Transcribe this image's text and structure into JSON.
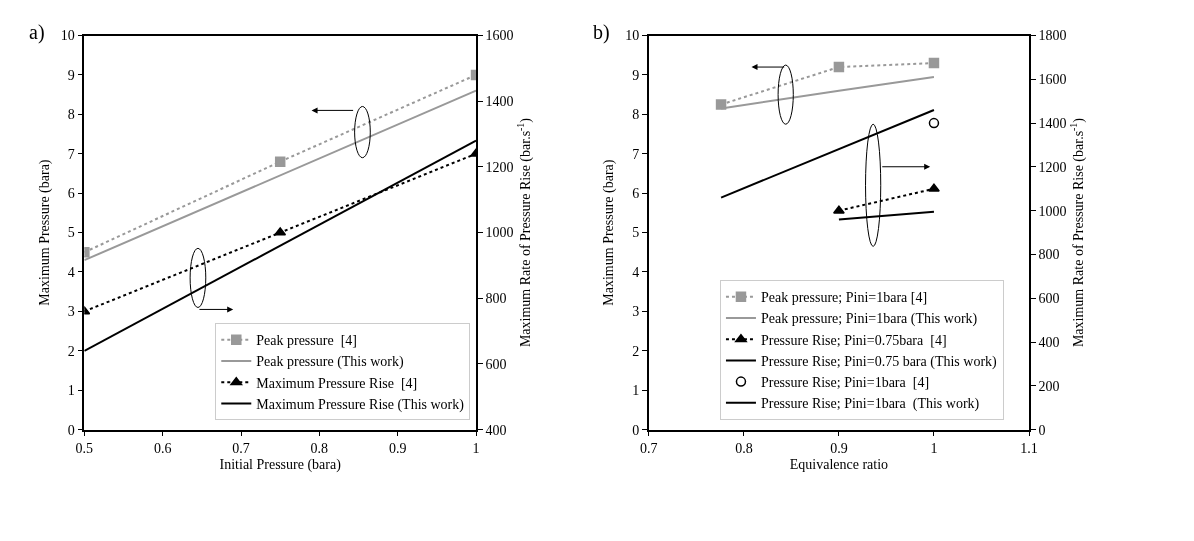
{
  "chart_data": [
    {
      "type": "line",
      "annotations": [
        "a)"
      ],
      "xlabel": "Initial Pressure (bara)",
      "ylabel": "Maximum Pressure (bara)",
      "y2label": "Maximum Rate of Pressure Rise (bar.s$^{-1}$)",
      "xlim": [
        0.5,
        1
      ],
      "xticks": [
        0.5,
        0.6,
        0.7,
        0.8,
        0.9,
        1
      ],
      "ylim": [
        0,
        10
      ],
      "yticks": [
        0,
        1,
        2,
        3,
        4,
        5,
        6,
        7,
        8,
        9,
        10
      ],
      "y2lim": [
        400,
        1600
      ],
      "y2ticks": [
        400,
        600,
        800,
        1000,
        1200,
        1400,
        1600
      ],
      "legend": "bottom right",
      "series": [
        {
          "name": "Peak pressure  [4]",
          "color": "#999999",
          "marker": "square",
          "line_style": "dotted",
          "x": [
            0.5,
            0.75,
            1
          ],
          "values": [
            4.5,
            6.8,
            9.0
          ]
        },
        {
          "name": "Peak pressure (This work)",
          "color": "#999999",
          "marker": "none",
          "line_style": "solid",
          "x": [
            0.5,
            1
          ],
          "values": [
            4.3,
            8.6
          ]
        },
        {
          "name": "Maximum Pressure Rise  [4]",
          "color": "#000000",
          "marker": "triangle",
          "line_style": "dotted",
          "axis": "y2",
          "x": [
            0.5,
            0.75,
            1
          ],
          "values": [
            760,
            1000,
            1240
          ]
        },
        {
          "name": "Maximum Pressure Rise (This work)",
          "color": "#000000",
          "marker": "none",
          "line_style": "solid",
          "axis": "y2",
          "x": [
            0.5,
            1
          ],
          "values": [
            640,
            1280
          ]
        }
      ]
    },
    {
      "type": "line",
      "annotations": [
        "b)"
      ],
      "xlabel": "Equivalence ratio",
      "ylabel": "Maximum Pressure (bara)",
      "y2label": "Maximum Rate of Pressure Rise (bar.s$^{-1}$)",
      "xlim": [
        0.7,
        1.1
      ],
      "xticks": [
        0.7,
        0.8,
        0.9,
        1,
        1.1
      ],
      "ylim": [
        0,
        10
      ],
      "yticks": [
        0,
        1,
        2,
        3,
        4,
        5,
        6,
        7,
        8,
        9,
        10
      ],
      "y2lim": [
        0,
        1800
      ],
      "y2ticks": [
        0,
        200,
        400,
        600,
        800,
        1000,
        1200,
        1400,
        1600,
        1800
      ],
      "legend": "bottom",
      "series": [
        {
          "name": "Peak pressure; Pini=1bara [4]",
          "color": "#999999",
          "marker": "square",
          "line_style": "dotted",
          "x": [
            0.776,
            0.9,
            1
          ],
          "values": [
            8.25,
            9.2,
            9.3
          ]
        },
        {
          "name": "Peak pressure; Pini=1bara (This work)",
          "color": "#999999",
          "marker": "none",
          "line_style": "solid",
          "x": [
            0.776,
            0.9,
            1
          ],
          "values": [
            8.15,
            8.6,
            8.95
          ]
        },
        {
          "name": "Pressure Rise; Pini=0.75bara  [4]",
          "color": "#000000",
          "marker": "triangle",
          "line_style": "dotted",
          "axis": "y2",
          "x": [
            0.9,
            1
          ],
          "values": [
            1000,
            1100
          ]
        },
        {
          "name": "Pressure Rise; Pini=0.75 bara (This work)",
          "color": "#000000",
          "marker": "none",
          "line_style": "solid",
          "axis": "y2",
          "x": [
            0.9,
            1
          ],
          "values": [
            960,
            995
          ]
        },
        {
          "name": "Pressure Rise; Pini=1bara  [4]",
          "type": "scatter",
          "color": "#000000",
          "marker": "circle",
          "axis": "y2",
          "x": [
            1
          ],
          "values": [
            1400
          ]
        },
        {
          "name": "Pressure Rise; Pini=1bara  (This work)",
          "color": "#000000",
          "marker": "none",
          "line_style": "solid",
          "axis": "y2",
          "x": [
            0.776,
            1
          ],
          "values": [
            1060,
            1460
          ]
        }
      ]
    }
  ]
}
